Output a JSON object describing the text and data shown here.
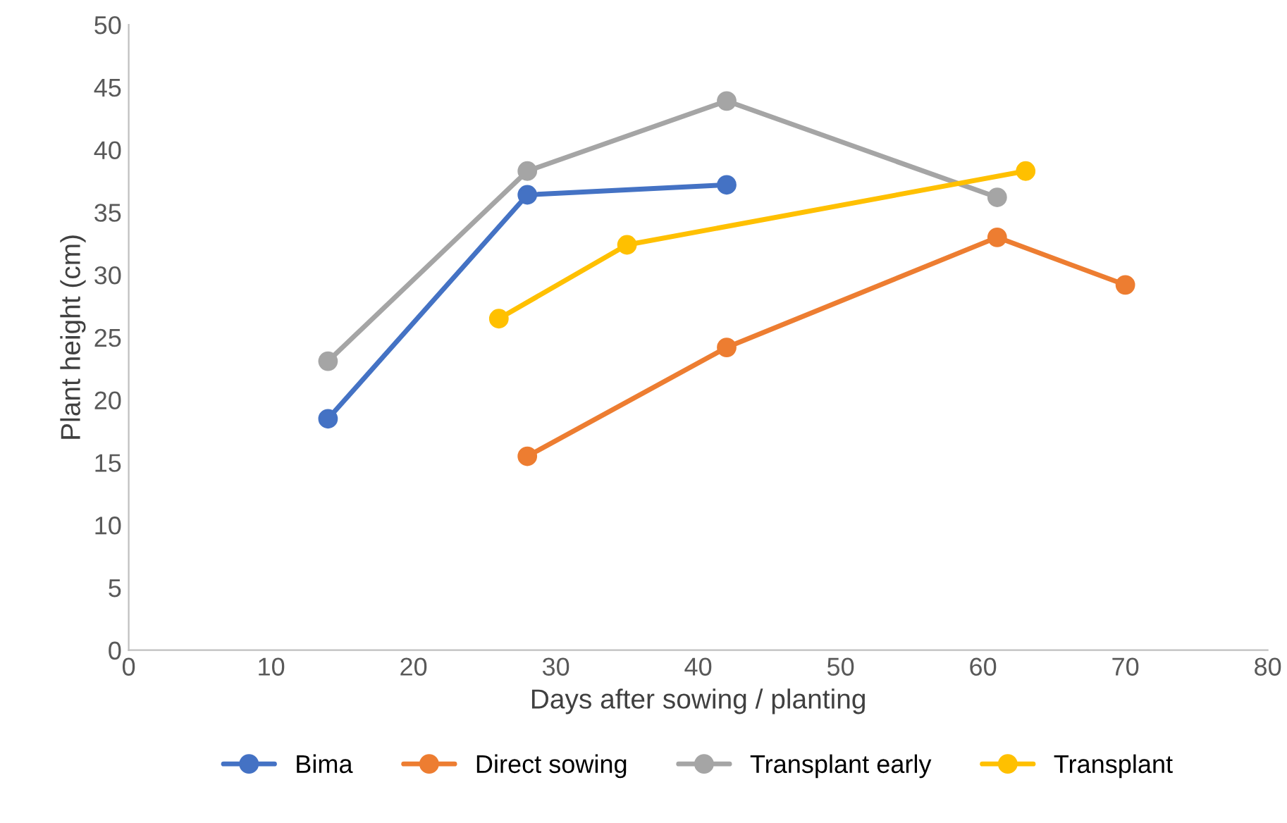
{
  "chart_data": {
    "type": "line",
    "xlabel": "Days after sowing / planting",
    "ylabel": "Plant height (cm)",
    "xlim": [
      0,
      80
    ],
    "xticks": [
      0,
      10,
      20,
      30,
      40,
      50,
      60,
      70,
      80
    ],
    "ylim": [
      0,
      50
    ],
    "yticks": [
      0,
      5,
      10,
      15,
      20,
      25,
      30,
      35,
      40,
      45,
      50
    ],
    "grid": false,
    "legend": "bottom",
    "marker": "circle",
    "line_style": "solid",
    "series": [
      {
        "name": "Bima",
        "color": "#4472c4",
        "x": [
          14,
          28,
          42
        ],
        "values": [
          18.5,
          36.4,
          37.2
        ]
      },
      {
        "name": "Direct sowing",
        "color": "#ed7d31",
        "x": [
          28,
          42,
          61,
          70
        ],
        "values": [
          15.5,
          24.2,
          33.0,
          29.2
        ]
      },
      {
        "name": "Transplant early",
        "color": "#a5a5a5",
        "x": [
          14,
          28,
          42,
          61
        ],
        "values": [
          23.1,
          38.3,
          43.9,
          36.2
        ]
      },
      {
        "name": "Transplant",
        "color": "#ffc000",
        "x": [
          26,
          35,
          63
        ],
        "values": [
          26.5,
          32.4,
          38.3
        ]
      }
    ]
  }
}
